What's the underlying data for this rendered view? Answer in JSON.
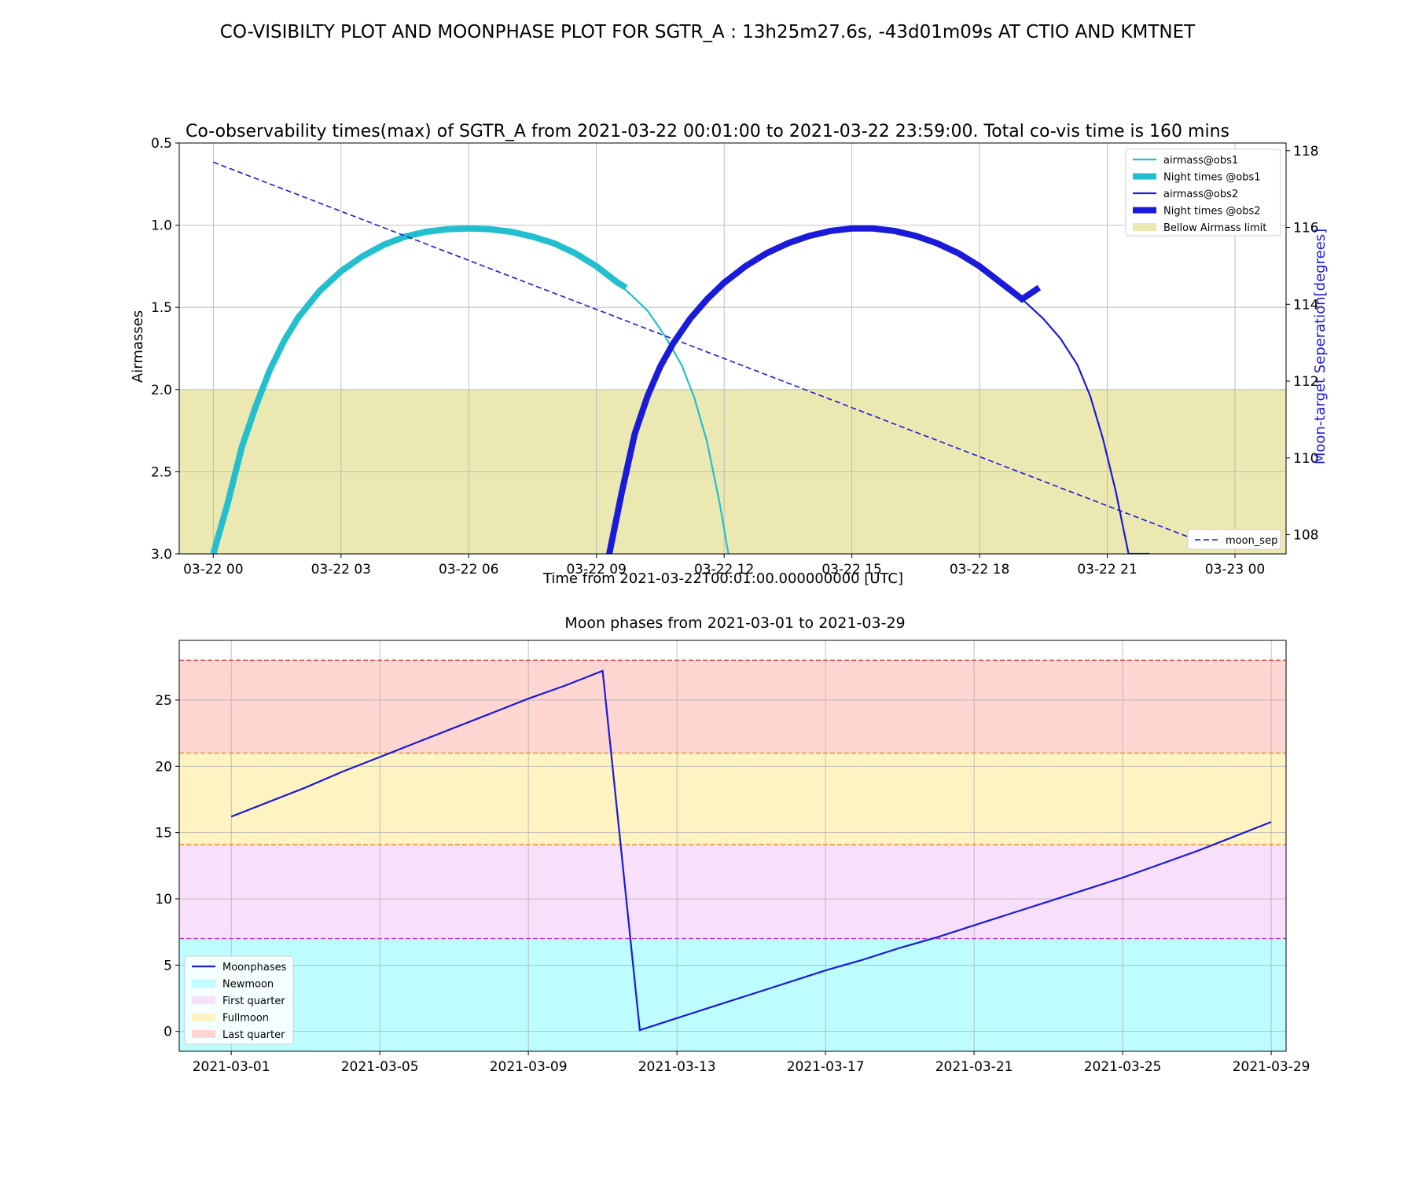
{
  "suptitle": "CO-VISIBILTY PLOT AND MOONPHASE PLOT FOR  SGTR_A : 13h25m27.6s, -43d01m09s AT CTIO AND KMTNET",
  "chart_data": [
    {
      "type": "line",
      "title": "Co-observability times(max) of  SGTR_A  from  2021-03-22 00:01:00  to  2021-03-22 23:59:00. Total co-vis time is 160 mins",
      "xlabel": "Time from 2021-03-22T00:01:00.000000000 [UTC]",
      "ylabel": "Airmasses",
      "ylabel_right": "Moon-target Seperation[degrees]",
      "x_unit": "hours since 2021-03-22 00:00 UTC",
      "xlim": [
        -0.8,
        25.2
      ],
      "ylim": [
        3.0,
        0.5
      ],
      "ylim_right": [
        107.5,
        118.2
      ],
      "y_inverted": true,
      "grid": true,
      "x_ticks": [
        0,
        3,
        6,
        9,
        12,
        15,
        18,
        21,
        24
      ],
      "x_tick_labels": [
        "03-22 00",
        "03-22 03",
        "03-22 06",
        "03-22 09",
        "03-22 12",
        "03-22 15",
        "03-22 18",
        "03-22 21",
        "03-23 00"
      ],
      "y_ticks": [
        0.5,
        1.0,
        1.5,
        2.0,
        2.5,
        3.0
      ],
      "y_tick_labels": [
        "0.5",
        "1.0",
        "1.5",
        "2.0",
        "2.5",
        "3.0"
      ],
      "y_right_ticks": [
        108,
        110,
        112,
        114,
        116,
        118
      ],
      "y_right_tick_labels": [
        "108",
        "110",
        "112",
        "114",
        "116",
        "118"
      ],
      "bands": [
        {
          "name": "Bellow Airmass limit",
          "y0": 2.0,
          "y1": 3.0,
          "color": "#ebe9b1"
        }
      ],
      "series": [
        {
          "name": "airmass@obs1",
          "color": "#23bfcf",
          "axis": "left",
          "x": [
            0.0,
            0.33,
            0.67,
            1.0,
            1.33,
            1.67,
            2.0,
            2.5,
            3.0,
            3.5,
            4.0,
            4.5,
            5.0,
            5.5,
            6.0,
            6.5,
            7.0,
            7.5,
            8.0,
            8.5,
            9.0,
            9.5,
            9.8,
            10.2,
            10.6,
            11.0,
            11.3,
            11.6,
            11.9,
            12.1
          ],
          "y": [
            3.0,
            2.7,
            2.35,
            2.1,
            1.88,
            1.7,
            1.56,
            1.4,
            1.28,
            1.19,
            1.12,
            1.07,
            1.04,
            1.025,
            1.02,
            1.025,
            1.04,
            1.07,
            1.11,
            1.17,
            1.25,
            1.35,
            1.42,
            1.52,
            1.67,
            1.85,
            2.05,
            2.32,
            2.7,
            3.0
          ]
        },
        {
          "name": "Night times @obs1",
          "color": "#23bfcf",
          "axis": "left",
          "thick": true,
          "x": [
            0.0,
            0.33,
            0.67,
            1.0,
            1.33,
            1.67,
            2.0,
            2.5,
            3.0,
            3.5,
            4.0,
            4.5,
            5.0,
            5.5,
            6.0,
            6.5,
            7.0,
            7.5,
            8.0,
            8.5,
            9.0,
            9.5,
            9.7
          ],
          "y": [
            3.0,
            2.7,
            2.35,
            2.1,
            1.88,
            1.7,
            1.56,
            1.4,
            1.28,
            1.19,
            1.12,
            1.07,
            1.04,
            1.025,
            1.02,
            1.025,
            1.04,
            1.07,
            1.11,
            1.17,
            1.25,
            1.35,
            1.38
          ]
        },
        {
          "name": "airmass@obs2",
          "color": "#1a1adb",
          "axis": "left",
          "x": [
            9.3,
            9.6,
            9.9,
            10.2,
            10.5,
            10.8,
            11.2,
            11.6,
            12.0,
            12.5,
            13.0,
            13.5,
            14.0,
            14.5,
            15.0,
            15.5,
            16.0,
            16.5,
            17.0,
            17.5,
            18.0,
            18.5,
            19.0,
            19.5,
            19.9,
            20.3,
            20.6,
            20.9,
            21.2,
            21.5,
            21.8,
            22.0
          ],
          "y": [
            3.0,
            2.62,
            2.27,
            2.04,
            1.86,
            1.72,
            1.57,
            1.45,
            1.35,
            1.25,
            1.17,
            1.11,
            1.065,
            1.035,
            1.02,
            1.02,
            1.035,
            1.065,
            1.11,
            1.17,
            1.25,
            1.35,
            1.45,
            1.57,
            1.69,
            1.85,
            2.04,
            2.3,
            2.62,
            3.0,
            3.0,
            3.0
          ]
        },
        {
          "name": "Night times @obs2",
          "color": "#1a1adb",
          "axis": "left",
          "thick": true,
          "x": [
            9.3,
            9.6,
            9.9,
            10.2,
            10.5,
            10.8,
            11.2,
            11.6,
            12.0,
            12.5,
            13.0,
            13.5,
            14.0,
            14.5,
            15.0,
            15.5,
            16.0,
            16.5,
            17.0,
            17.5,
            18.0,
            18.5,
            19.0,
            19.4
          ],
          "y": [
            3.0,
            2.62,
            2.27,
            2.04,
            1.86,
            1.72,
            1.57,
            1.45,
            1.35,
            1.25,
            1.17,
            1.11,
            1.065,
            1.035,
            1.02,
            1.02,
            1.035,
            1.065,
            1.11,
            1.17,
            1.25,
            1.35,
            1.45,
            1.38
          ]
        },
        {
          "name": "moon_sep",
          "color": "#1a1adb",
          "axis": "right",
          "dashed": true,
          "x": [
            0.0,
            23.0
          ],
          "y": [
            117.7,
            107.9
          ]
        }
      ],
      "legend_main": [
        "airmass@obs1",
        "Night times @obs1",
        "airmass@obs2",
        "Night times @obs2",
        "Bellow Airmass limit"
      ],
      "legend_main_position": "top-right",
      "legend_sep": [
        "moon_sep"
      ],
      "legend_sep_position": "bottom-right"
    },
    {
      "type": "line",
      "title": "Moon phases from 2021-03-01 to 2021-03-29",
      "x_unit": "day of March 2021",
      "xlim": [
        -0.4,
        29.4
      ],
      "ylim": [
        -1.5,
        29.5
      ],
      "grid": true,
      "x_ticks": [
        1,
        5,
        9,
        13,
        17,
        21,
        25,
        29
      ],
      "x_tick_labels": [
        "2021-03-01",
        "2021-03-05",
        "2021-03-09",
        "2021-03-13",
        "2021-03-17",
        "2021-03-21",
        "2021-03-25",
        "2021-03-29"
      ],
      "y_ticks": [
        0,
        5,
        10,
        15,
        20,
        25
      ],
      "y_tick_labels": [
        "0",
        "5",
        "10",
        "15",
        "20",
        "25"
      ],
      "bands": [
        {
          "name": "Newmoon",
          "y0": -1.5,
          "y1": 7.0,
          "color": "#bdfdff",
          "line_color": "#c030e0"
        },
        {
          "name": "First quarter",
          "y0": 7.0,
          "y1": 14.1,
          "color": "#f8e0fa",
          "line_color": "#f08a20"
        },
        {
          "name": "Fullmoon",
          "y0": 14.1,
          "y1": 21.0,
          "color": "#fff3c2",
          "line_color": "#f08a20"
        },
        {
          "name": "Last quarter",
          "y0": 21.0,
          "y1": 28.0,
          "color": "#ffd6d2",
          "line_color": "#e04848"
        }
      ],
      "series": [
        {
          "name": "Moonphases",
          "color": "#1a1adb",
          "x": [
            1,
            2,
            3,
            4,
            5,
            6,
            7,
            8,
            9,
            10,
            11,
            12,
            13,
            14,
            15,
            16,
            17,
            18,
            19,
            20,
            21,
            22,
            23,
            24,
            25,
            26,
            27,
            28,
            29
          ],
          "y": [
            16.2,
            17.3,
            18.4,
            19.6,
            20.7,
            21.8,
            22.9,
            24.0,
            25.1,
            26.1,
            27.2,
            0.1,
            1.0,
            1.9,
            2.8,
            3.7,
            4.6,
            5.4,
            6.3,
            7.1,
            8.0,
            8.9,
            9.8,
            10.7,
            11.6,
            12.6,
            13.6,
            14.7,
            15.8
          ]
        }
      ],
      "legend": [
        "Moonphases",
        "Newmoon",
        "First quarter",
        "Fullmoon",
        "Last quarter"
      ],
      "legend_position": "bottom-left"
    }
  ]
}
